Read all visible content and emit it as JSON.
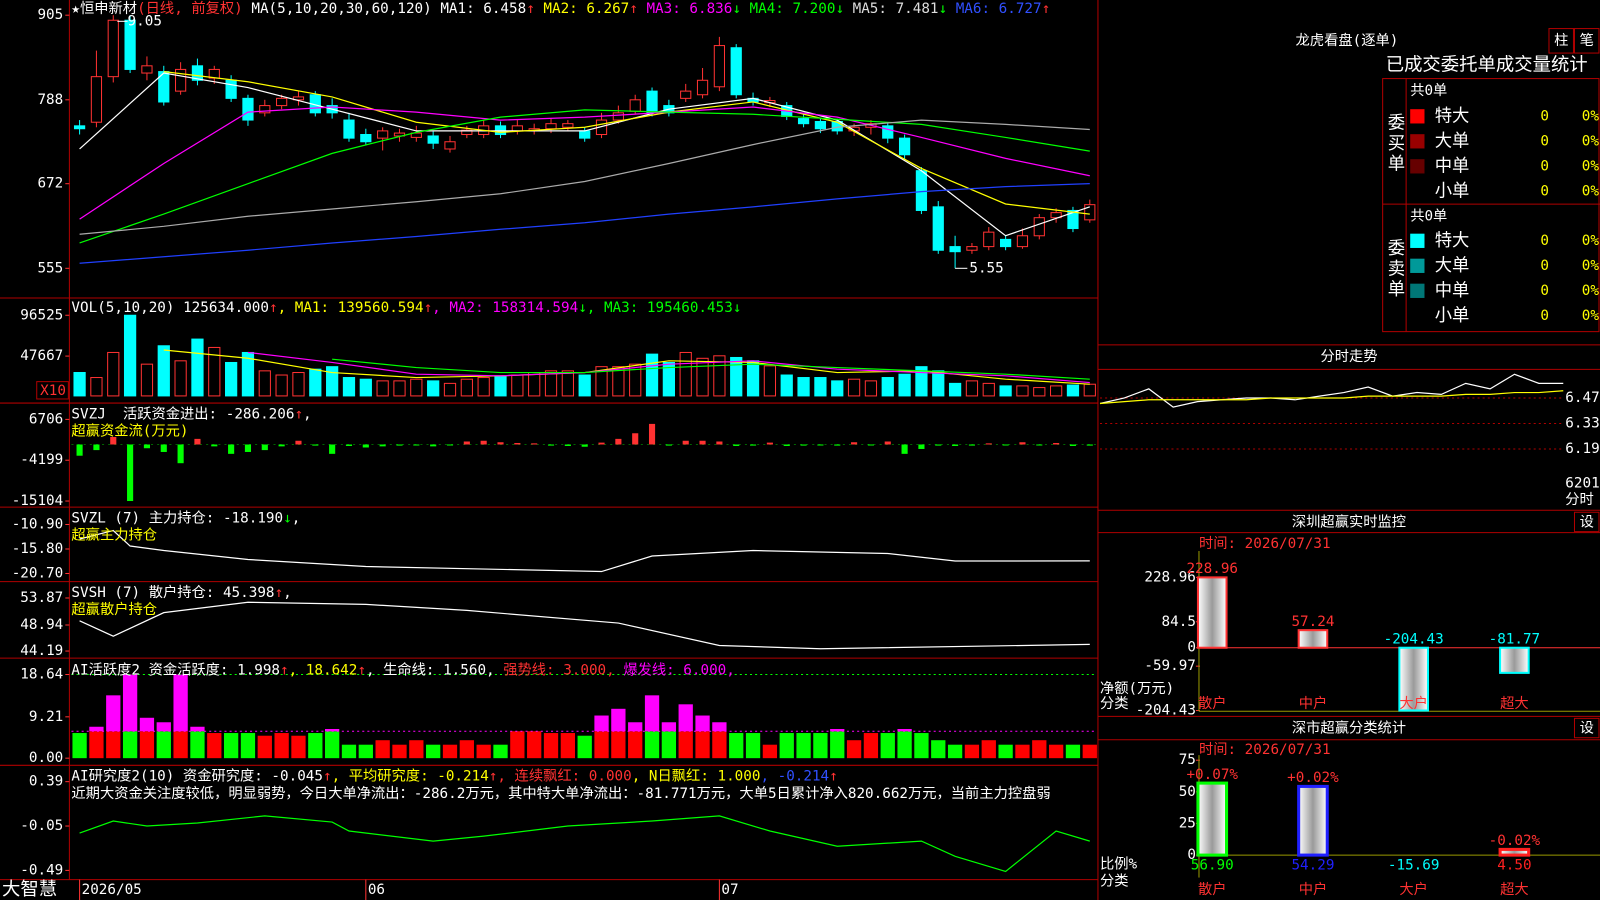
{
  "main": {
    "header": [
      [
        {
          "text": "★恒申新材",
          "color": "#ffffff"
        },
        {
          "text": "(日线, 前复权)",
          "color": "#ff3232"
        },
        {
          "text": " MA(5,10,20,30,60,120) ",
          "color": "#ffffff"
        },
        {
          "text": "MA1: 6.458",
          "color": "#ffffff"
        },
        {
          "text": "↑",
          "color": "#ff3232"
        },
        {
          "text": " MA2: 6.267",
          "color": "#ffff00"
        },
        {
          "text": "↑",
          "color": "#ff3232"
        },
        {
          "text": " MA3: 6.836",
          "color": "#ff00ff"
        },
        {
          "text": "↓",
          "color": "#00ff00"
        },
        {
          "text": " MA4: 7.200",
          "color": "#00ff00"
        },
        {
          "text": "↓",
          "color": "#00ff00"
        },
        {
          "text": " MA5: 7.481",
          "color": "#dddddd"
        },
        {
          "text": "↓",
          "color": "#00ff00"
        },
        {
          "text": " MA6: 6.727",
          "color": "#3050ff"
        },
        {
          "text": "↑",
          "color": "#ff3232"
        }
      ]
    ],
    "ylim": [
      514,
      926
    ],
    "yticks": [
      905,
      788,
      672,
      555
    ],
    "high_label": "9.05",
    "low_label": "5.55",
    "candles": {
      "open": [
        752,
        757,
        820,
        898,
        825,
        827,
        800,
        835,
        818,
        815,
        790,
        770,
        780,
        788,
        795,
        780,
        760,
        740,
        735,
        738,
        736,
        738,
        720,
        740,
        740,
        752,
        745,
        745,
        748,
        750,
        745,
        740,
        760,
        772,
        800,
        780,
        790,
        795,
        806,
        860,
        790,
        784,
        780,
        762,
        758,
        758,
        745,
        750,
        752,
        735,
        690,
        640,
        585,
        580,
        585,
        595,
        585,
        600,
        625,
        635,
        622
      ],
      "close": [
        748,
        820,
        898,
        830,
        835,
        785,
        830,
        815,
        830,
        790,
        760,
        780,
        790,
        792,
        770,
        770,
        735,
        730,
        745,
        742,
        742,
        728,
        730,
        746,
        752,
        740,
        752,
        748,
        755,
        755,
        735,
        760,
        770,
        788,
        770,
        770,
        800,
        815,
        863,
        795,
        785,
        787,
        765,
        755,
        748,
        745,
        750,
        755,
        735,
        712,
        635,
        580,
        578,
        585,
        605,
        585,
        600,
        625,
        632,
        610,
        643
      ],
      "high": [
        760,
        856,
        905,
        905,
        848,
        835,
        840,
        845,
        835,
        822,
        795,
        788,
        795,
        800,
        800,
        790,
        770,
        748,
        750,
        748,
        752,
        745,
        738,
        752,
        760,
        758,
        760,
        755,
        762,
        760,
        750,
        770,
        780,
        795,
        805,
        788,
        810,
        832,
        875,
        865,
        798,
        792,
        785,
        768,
        762,
        762,
        755,
        760,
        756,
        740,
        695,
        648,
        600,
        590,
        612,
        600,
        610,
        630,
        638,
        640,
        650
      ],
      "low": [
        740,
        750,
        812,
        825,
        815,
        780,
        795,
        808,
        810,
        785,
        752,
        765,
        775,
        780,
        765,
        762,
        730,
        725,
        718,
        730,
        730,
        720,
        715,
        735,
        735,
        735,
        740,
        740,
        742,
        745,
        730,
        735,
        755,
        768,
        765,
        765,
        785,
        790,
        800,
        790,
        780,
        778,
        760,
        750,
        742,
        740,
        738,
        740,
        728,
        705,
        630,
        575,
        555,
        575,
        580,
        580,
        582,
        595,
        618,
        605,
        618
      ]
    },
    "ma_x": [
      0,
      5,
      10,
      15,
      20,
      25,
      30,
      35,
      40,
      45,
      50,
      55,
      60
    ],
    "ma_series": [
      {
        "color": "#ffffff",
        "values": [
          720,
          825,
          805,
          775,
          745,
          745,
          745,
          775,
          790,
          760,
          690,
          600,
          640
        ]
      },
      {
        "color": "#ffff00",
        "values": [
          null,
          827,
          813,
          792,
          757,
          743,
          750,
          771,
          785,
          757,
          693,
          644,
          630
        ]
      },
      {
        "color": "#ff00ff",
        "values": [
          623,
          700,
          771,
          778,
          771,
          760,
          764,
          771,
          778,
          764,
          736,
          707,
          683
        ]
      },
      {
        "color": "#00ff00",
        "values": [
          590,
          630,
          672,
          714,
          743,
          764,
          774,
          771,
          768,
          761,
          754,
          736,
          717
        ]
      },
      {
        "color": "#aaaaaa",
        "values": [
          602,
          613,
          627,
          637,
          647,
          658,
          675,
          700,
          726,
          750,
          760,
          754,
          747
        ]
      },
      {
        "color": "#2040ff",
        "values": [
          562,
          571,
          580,
          590,
          599,
          609,
          618,
          630,
          640,
          651,
          661,
          668,
          672
        ]
      }
    ]
  },
  "vol": {
    "header": [
      [
        {
          "text": "VOL(5,10,20) 125634.000",
          "color": "#ffffff"
        },
        {
          "text": "↑",
          "color": "#ff3232"
        },
        {
          "text": ", MA1: 139560.594",
          "color": "#ffff00"
        },
        {
          "text": "↑",
          "color": "#ff3232"
        },
        {
          "text": ", MA2: 158314.594",
          "color": "#ff00ff"
        },
        {
          "text": "↓",
          "color": "#00ff00"
        },
        {
          "text": ", MA3: 195460.453",
          "color": "#00ff00"
        },
        {
          "text": "↓",
          "color": "#00ff00"
        }
      ]
    ],
    "unit": "X10",
    "ylim": [
      0,
      116000
    ],
    "yticks": [
      96525,
      47667
    ],
    "values": [
      28000,
      22000,
      52000,
      96525,
      38000,
      60000,
      42000,
      68000,
      58000,
      40000,
      52000,
      30000,
      25000,
      28000,
      32000,
      35000,
      22000,
      20000,
      18000,
      18000,
      20000,
      18000,
      15000,
      20000,
      22000,
      24000,
      25000,
      28000,
      30000,
      30000,
      25000,
      35000,
      35000,
      38000,
      50000,
      40000,
      52000,
      45000,
      48000,
      46000,
      42000,
      36000,
      25000,
      22000,
      22000,
      18000,
      20000,
      18000,
      22000,
      26000,
      35000,
      30000,
      15000,
      18000,
      15000,
      12000,
      12000,
      10000,
      12000,
      13000,
      14000
    ],
    "ma_x": [
      0,
      5,
      10,
      15,
      20,
      25,
      30,
      35,
      40,
      45,
      50,
      55,
      60
    ],
    "ma_series": [
      {
        "color": "#ffff00",
        "values": [
          null,
          55000,
          45000,
          28000,
          22000,
          24000,
          28000,
          42000,
          40000,
          28000,
          30000,
          20000,
          14000
        ]
      },
      {
        "color": "#ff00ff",
        "values": [
          null,
          null,
          52000,
          40000,
          26000,
          24000,
          28000,
          38000,
          42000,
          32000,
          28000,
          24000,
          16000
        ]
      },
      {
        "color": "#00ff00",
        "values": [
          null,
          null,
          null,
          44000,
          34000,
          28000,
          28000,
          34000,
          38000,
          34000,
          30000,
          26000,
          20000
        ]
      }
    ]
  },
  "svzj": {
    "header": [
      [
        {
          "text": "SVZJ  活跃资金进出: -286.206",
          "color": "#ffffff"
        },
        {
          "text": "↑",
          "color": "#ff3232"
        },
        {
          "text": ",",
          "color": "#ffffff"
        }
      ],
      [
        {
          "text": "超赢资金流(万元)",
          "color": "#ffff00"
        }
      ]
    ],
    "ylim": [
      -16738,
      10522
    ],
    "yticks": [
      6706,
      -4199,
      -15104
    ],
    "values": [
      -3000,
      -1500,
      2000,
      -15104,
      -1000,
      -2000,
      -5000,
      1500,
      -500,
      -2500,
      -2000,
      -1500,
      -500,
      1000,
      -300,
      -2500,
      -400,
      -800,
      -500,
      -300,
      -200,
      -500,
      -200,
      800,
      1000,
      600,
      400,
      300,
      -300,
      -400,
      -600,
      500,
      1500,
      3000,
      5500,
      -300,
      1000,
      1000,
      800,
      -400,
      -300,
      500,
      -400,
      -300,
      -200,
      -300,
      600,
      -200,
      800,
      -2500,
      -1200,
      -300,
      -400,
      -300,
      300,
      -200,
      600,
      -200,
      400,
      -400,
      -300
    ]
  },
  "svzl": {
    "header": [
      [
        {
          "text": "SVZL (7) 主力持仓: -18.190",
          "color": "#ffffff"
        },
        {
          "text": "↓",
          "color": "#00ff00"
        },
        {
          "text": ",",
          "color": "#ffffff"
        }
      ],
      [
        {
          "text": "超赢主力持仓",
          "color": "#ffff00"
        }
      ]
    ],
    "ylim": [
      -22.33,
      -7.84
    ],
    "yticks": [
      {
        "value": -10.9,
        "label": "-10.90"
      },
      {
        "value": -15.8,
        "label": "-15.80"
      },
      {
        "value": -20.7,
        "label": "-20.70"
      }
    ],
    "x": [
      0,
      2,
      3,
      5,
      10,
      17,
      31,
      34,
      40,
      48,
      52,
      60
    ],
    "values": [
      -13.8,
      -12.1,
      -15.2,
      -16.1,
      -17.9,
      -19.3,
      -20.3,
      -17.2,
      -16.1,
      -16.7,
      -18.2,
      -18.19
    ]
  },
  "svsh": {
    "header": [
      [
        {
          "text": "SVSH (7) 散户持仓: 45.398",
          "color": "#ffffff"
        },
        {
          "text": "↑",
          "color": "#ff3232"
        },
        {
          "text": ",",
          "color": "#ffffff"
        }
      ],
      [
        {
          "text": "超赢散户持仓",
          "color": "#ffff00"
        }
      ]
    ],
    "ylim": [
      42.89,
      56.48
    ],
    "yticks": [
      53.87,
      48.94,
      44.19
    ],
    "x": [
      0,
      2,
      5,
      10,
      17,
      23,
      32,
      38,
      44,
      60
    ],
    "values": [
      49.7,
      46.9,
      51.2,
      53.1,
      52.7,
      51.6,
      49.3,
      45.2,
      44.6,
      45.4
    ]
  },
  "ai_active": {
    "header": [
      [
        {
          "text": "AI活跃度2 资金活跃度: 1.998",
          "color": "#ffffff"
        },
        {
          "text": "↑",
          "color": "#ff3232"
        },
        {
          "text": ", 18.642",
          "color": "#ffff00"
        },
        {
          "text": "↑",
          "color": "#ff3232"
        },
        {
          "text": ", 生命线: 1.560,",
          "color": "#ffffff"
        },
        {
          "text": " 强势线: 3.000,",
          "color": "#ff3232"
        },
        {
          "text": " 爆发线: 6.000,",
          "color": "#ff00ff"
        }
      ]
    ],
    "ylim": [
      -1.59,
      21.6
    ],
    "yticks": [
      18.64,
      9.21,
      {
        "value": 0,
        "label": "0.00"
      }
    ],
    "burst_level": 6,
    "top_level": 18.642,
    "values": [
      5.6,
      7,
      14,
      18.64,
      9,
      8,
      18.64,
      7,
      5.6,
      5.6,
      5.6,
      5,
      5.6,
      5,
      5.6,
      6.5,
      3,
      3,
      4,
      3,
      4,
      3,
      3,
      4,
      3,
      3,
      6,
      6,
      5.6,
      5.6,
      5,
      9.5,
      11,
      8,
      14,
      8,
      12,
      9.5,
      8,
      5.6,
      5.6,
      3,
      5.6,
      5.6,
      5.6,
      6.5,
      4,
      5.6,
      5.6,
      6.5,
      5.6,
      4,
      3,
      3,
      4,
      3,
      3,
      4,
      3,
      3,
      3
    ]
  },
  "ai_research": {
    "header": [
      [
        {
          "text": "AI研究度2(10) 资金研究度: -0.045",
          "color": "#ffffff"
        },
        {
          "text": "↑",
          "color": "#ff3232"
        },
        {
          "text": ", 平均研究度: -0.214",
          "color": "#ffff00"
        },
        {
          "text": "↑",
          "color": "#ff3232"
        },
        {
          "text": ", 连续飘红: 0.000",
          "color": "#ff3232"
        },
        {
          "text": ", N日飘红: 1.000",
          "color": "#ffff00"
        },
        {
          "text": ", -0.214",
          "color": "#3050ff"
        },
        {
          "text": "↑",
          "color": "#ff3232"
        }
      ],
      [
        {
          "text": "近期大资金关注度较低，明显弱势，今日大单净流出：-286.2万元，其中特大单净流出：-81.771万元，大单5日累计净入820.662万元，当前主力控盘弱",
          "color": "#ffffff"
        }
      ]
    ],
    "ylim": [
      -0.561,
      0.532
    ],
    "yticks": [
      0.39,
      -0.05,
      -0.49
    ],
    "x": [
      0,
      2,
      4,
      7,
      11,
      15,
      16,
      21,
      24,
      29,
      34,
      38,
      41,
      45,
      50,
      52,
      55,
      58,
      60
    ],
    "values": [
      -0.12,
      0,
      -0.05,
      -0.02,
      0.05,
      -0.01,
      -0.1,
      -0.2,
      -0.15,
      -0.05,
      0,
      0.05,
      -0.1,
      -0.25,
      -0.2,
      -0.35,
      -0.5,
      -0.1,
      -0.2
    ]
  },
  "footer": {
    "brand": "大智慧",
    "dates": [
      {
        "index": 0,
        "label": "2026/05"
      },
      {
        "index": 17,
        "label": "06"
      },
      {
        "index": 38,
        "label": "07"
      }
    ]
  },
  "order_stats": {
    "title": "龙虎看盘(逐单)",
    "buttons": [
      "柱",
      "笔"
    ],
    "subtitle": "已成交委托单成交量统计",
    "buy": {
      "total": "共0单",
      "label": "委买单",
      "rows": [
        {
          "name": "特大",
          "color": "#ff0000",
          "count": 0,
          "pct": "0%"
        },
        {
          "name": "大单",
          "color": "#990000",
          "count": 0,
          "pct": "0%"
        },
        {
          "name": "中单",
          "color": "#660000",
          "count": 0,
          "pct": "0%"
        },
        {
          "name": "小单",
          "count": 0,
          "pct": "0%"
        }
      ]
    },
    "sell": {
      "total": "共0单",
      "label": "委卖单",
      "rows": [
        {
          "name": "特大",
          "color": "#00ffff",
          "count": 0,
          "pct": "0%"
        },
        {
          "name": "大单",
          "color": "#009999",
          "count": 0,
          "pct": "0%"
        },
        {
          "name": "中单",
          "color": "#007777",
          "count": 0,
          "pct": "0%"
        },
        {
          "name": "小单",
          "count": 0,
          "pct": "0%"
        }
      ]
    }
  },
  "intraday": {
    "title": "分时走势",
    "ylim": [
      6.078,
      6.627
    ],
    "yticks": [
      6.47,
      6.33,
      6.19
    ],
    "volume_label": "6201",
    "volume_unit": "分时",
    "price": [
      6.44,
      6.47,
      6.52,
      6.42,
      6.45,
      6.46,
      6.47,
      6.47,
      6.46,
      6.48,
      6.5,
      6.53,
      6.48,
      6.5,
      6.49,
      6.55,
      6.52,
      6.6,
      6.55,
      6.55
    ],
    "average": [
      6.44,
      6.45,
      6.46,
      6.46,
      6.46,
      6.46,
      6.46,
      6.47,
      6.47,
      6.47,
      6.47,
      6.48,
      6.48,
      6.48,
      6.48,
      6.49,
      6.49,
      6.5,
      6.5,
      6.51
    ]
  },
  "monitor": {
    "title": "深圳超赢实时监控",
    "button": "设",
    "time": "时间: 2026/07/31",
    "y_title": "净额(万元)",
    "x_title": "分类",
    "ylim": [
      -216.6,
      314.8
    ],
    "yticks": [
      228.96,
      84.5,
      0,
      -59.97,
      -204.43
    ],
    "categories": [
      "散户",
      "中户",
      "大户",
      "超大"
    ],
    "values": [
      228.96,
      57.24,
      -204.43,
      -81.77
    ]
  },
  "class_stats": {
    "title": "深市超赢分类统计",
    "button": "设",
    "time": "时间: 2026/07/31",
    "y_title": "比例%",
    "x_title": "分类",
    "ylim": [
      0,
      75
    ],
    "yticks": [
      75,
      50,
      25,
      0
    ],
    "categories": [
      "散户",
      "中户",
      "大户",
      "超大"
    ],
    "colors": [
      "#00ff00",
      "#2020ff",
      "#00ffff",
      "#ff2020"
    ],
    "values": [
      56.9,
      54.29,
      -15.69,
      4.5
    ],
    "value_labels": [
      "56.90",
      "54.29",
      "-15.69",
      "4.50"
    ],
    "changes": [
      0.07,
      0.02,
      null,
      -0.02
    ],
    "change_labels": [
      "+0.07%",
      "+0.02%",
      null,
      "-0.02%"
    ]
  }
}
